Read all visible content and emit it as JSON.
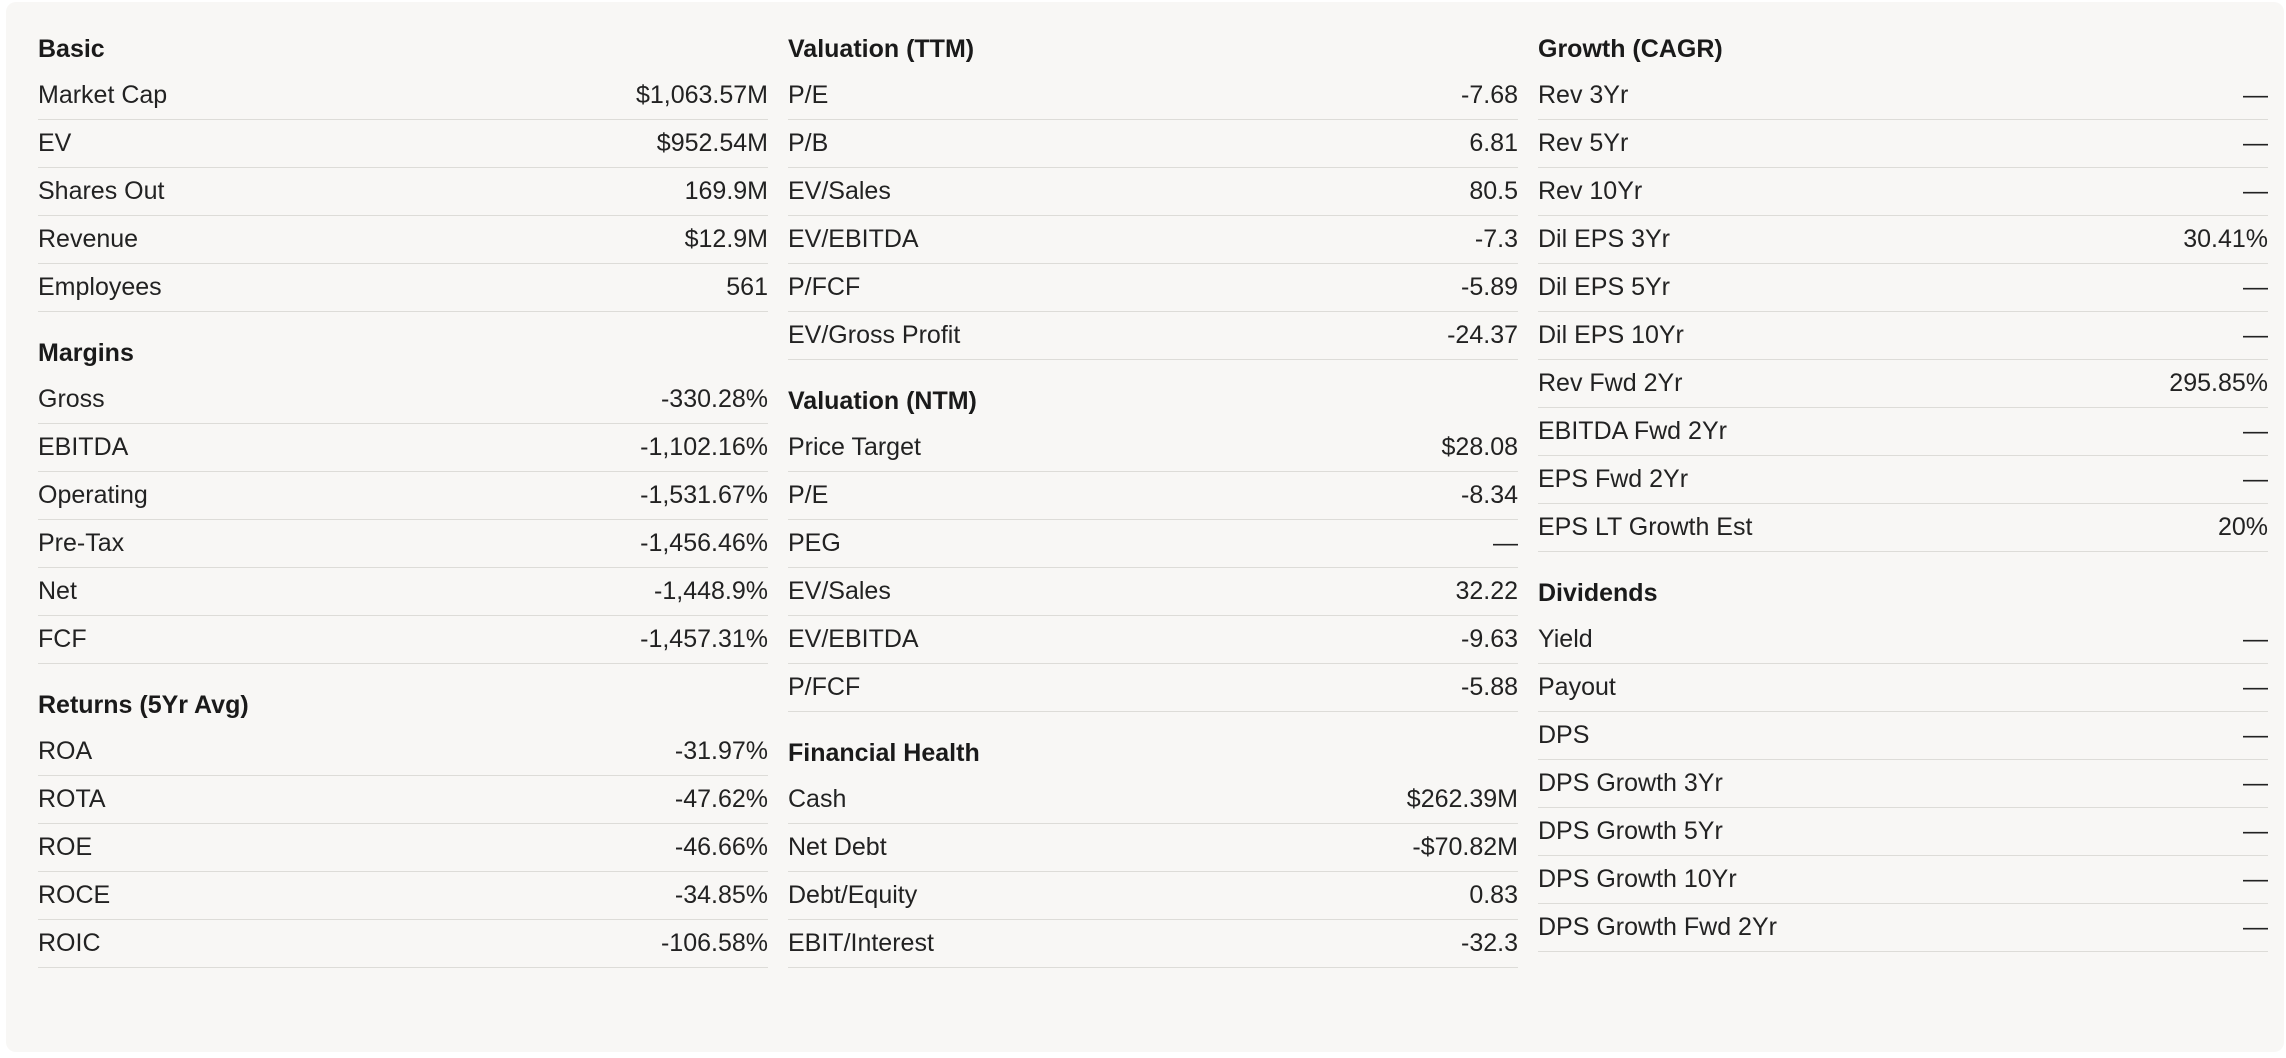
{
  "columns": [
    {
      "sections": [
        {
          "title": "Basic",
          "rows": [
            {
              "label": "Market Cap",
              "value": "$1,063.57M"
            },
            {
              "label": "EV",
              "value": "$952.54M"
            },
            {
              "label": "Shares Out",
              "value": "169.9M"
            },
            {
              "label": "Revenue",
              "value": "$12.9M"
            },
            {
              "label": "Employees",
              "value": "561"
            }
          ]
        },
        {
          "title": "Margins",
          "rows": [
            {
              "label": "Gross",
              "value": "-330.28%"
            },
            {
              "label": "EBITDA",
              "value": "-1,102.16%"
            },
            {
              "label": "Operating",
              "value": "-1,531.67%"
            },
            {
              "label": "Pre-Tax",
              "value": "-1,456.46%"
            },
            {
              "label": "Net",
              "value": "-1,448.9%"
            },
            {
              "label": "FCF",
              "value": "-1,457.31%"
            }
          ]
        },
        {
          "title": "Returns (5Yr Avg)",
          "rows": [
            {
              "label": "ROA",
              "value": "-31.97%"
            },
            {
              "label": "ROTA",
              "value": "-47.62%"
            },
            {
              "label": "ROE",
              "value": "-46.66%"
            },
            {
              "label": "ROCE",
              "value": "-34.85%"
            },
            {
              "label": "ROIC",
              "value": "-106.58%"
            }
          ]
        }
      ]
    },
    {
      "sections": [
        {
          "title": "Valuation (TTM)",
          "rows": [
            {
              "label": "P/E",
              "value": "-7.68"
            },
            {
              "label": "P/B",
              "value": "6.81"
            },
            {
              "label": "EV/Sales",
              "value": "80.5"
            },
            {
              "label": "EV/EBITDA",
              "value": "-7.3"
            },
            {
              "label": "P/FCF",
              "value": "-5.89"
            },
            {
              "label": "EV/Gross Profit",
              "value": "-24.37"
            }
          ]
        },
        {
          "title": "Valuation (NTM)",
          "rows": [
            {
              "label": "Price Target",
              "value": "$28.08"
            },
            {
              "label": "P/E",
              "value": "-8.34"
            },
            {
              "label": "PEG",
              "value": "—"
            },
            {
              "label": "EV/Sales",
              "value": "32.22"
            },
            {
              "label": "EV/EBITDA",
              "value": "-9.63"
            },
            {
              "label": "P/FCF",
              "value": "-5.88"
            }
          ]
        },
        {
          "title": "Financial Health",
          "rows": [
            {
              "label": "Cash",
              "value": "$262.39M"
            },
            {
              "label": "Net Debt",
              "value": "-$70.82M"
            },
            {
              "label": "Debt/Equity",
              "value": "0.83"
            },
            {
              "label": "EBIT/Interest",
              "value": "-32.3"
            }
          ]
        }
      ]
    },
    {
      "sections": [
        {
          "title": "Growth (CAGR)",
          "rows": [
            {
              "label": "Rev 3Yr",
              "value": "—"
            },
            {
              "label": "Rev 5Yr",
              "value": "—"
            },
            {
              "label": "Rev 10Yr",
              "value": "—"
            },
            {
              "label": "Dil EPS 3Yr",
              "value": "30.41%"
            },
            {
              "label": "Dil EPS 5Yr",
              "value": "—"
            },
            {
              "label": "Dil EPS 10Yr",
              "value": "—"
            },
            {
              "label": "Rev Fwd 2Yr",
              "value": "295.85%"
            },
            {
              "label": "EBITDA Fwd 2Yr",
              "value": "—"
            },
            {
              "label": "EPS Fwd 2Yr",
              "value": "—"
            },
            {
              "label": "EPS LT Growth Est",
              "value": "20%"
            }
          ]
        },
        {
          "title": "Dividends",
          "rows": [
            {
              "label": "Yield",
              "value": "—"
            },
            {
              "label": "Payout",
              "value": "—"
            },
            {
              "label": "DPS",
              "value": "—"
            },
            {
              "label": "DPS Growth 3Yr",
              "value": "—"
            },
            {
              "label": "DPS Growth 5Yr",
              "value": "—"
            },
            {
              "label": "DPS Growth 10Yr",
              "value": "—"
            },
            {
              "label": "DPS Growth Fwd 2Yr",
              "value": "—"
            }
          ]
        }
      ]
    }
  ]
}
